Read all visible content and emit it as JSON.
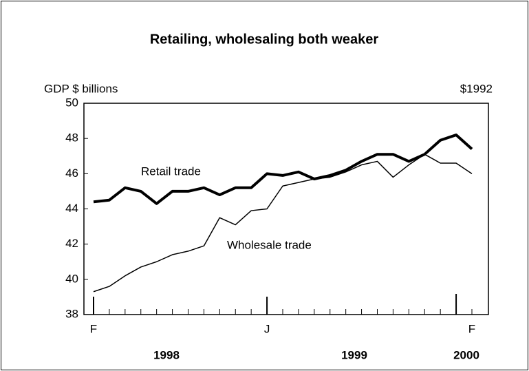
{
  "chart_data": {
    "type": "line",
    "title": "Retailing, wholesaling both weaker",
    "y_label": "GDP $ billions",
    "y_label_right": "$1992",
    "categories": [
      "F",
      null,
      null,
      null,
      null,
      null,
      null,
      null,
      null,
      null,
      null,
      "J",
      null,
      null,
      null,
      null,
      null,
      null,
      null,
      null,
      null,
      null,
      null,
      null,
      "F"
    ],
    "annotations": [
      "1998",
      "1999",
      "2000"
    ],
    "series": [
      {
        "name": "Retail trade",
        "color": "#000000",
        "values": [
          44.4,
          44.5,
          45.2,
          45.0,
          44.3,
          45.0,
          45.0,
          45.2,
          44.8,
          45.2,
          45.2,
          46.0,
          45.9,
          46.1,
          45.7,
          45.9,
          46.2,
          46.7,
          47.1,
          47.1,
          46.7,
          47.1,
          47.9,
          48.2,
          47.4
        ]
      },
      {
        "name": "Wholesale trade",
        "color": "#000000",
        "values": [
          39.3,
          39.6,
          40.2,
          40.7,
          41.0,
          41.4,
          41.6,
          41.9,
          43.5,
          43.1,
          43.9,
          44.0,
          45.3,
          45.5,
          45.7,
          45.8,
          46.1,
          46.5,
          46.7,
          45.8,
          46.5,
          47.1,
          46.6,
          46.6,
          46.0
        ]
      }
    ],
    "ylim": [
      38,
      50
    ],
    "yticks": [
      38,
      40,
      42,
      44,
      46,
      48,
      50
    ]
  }
}
